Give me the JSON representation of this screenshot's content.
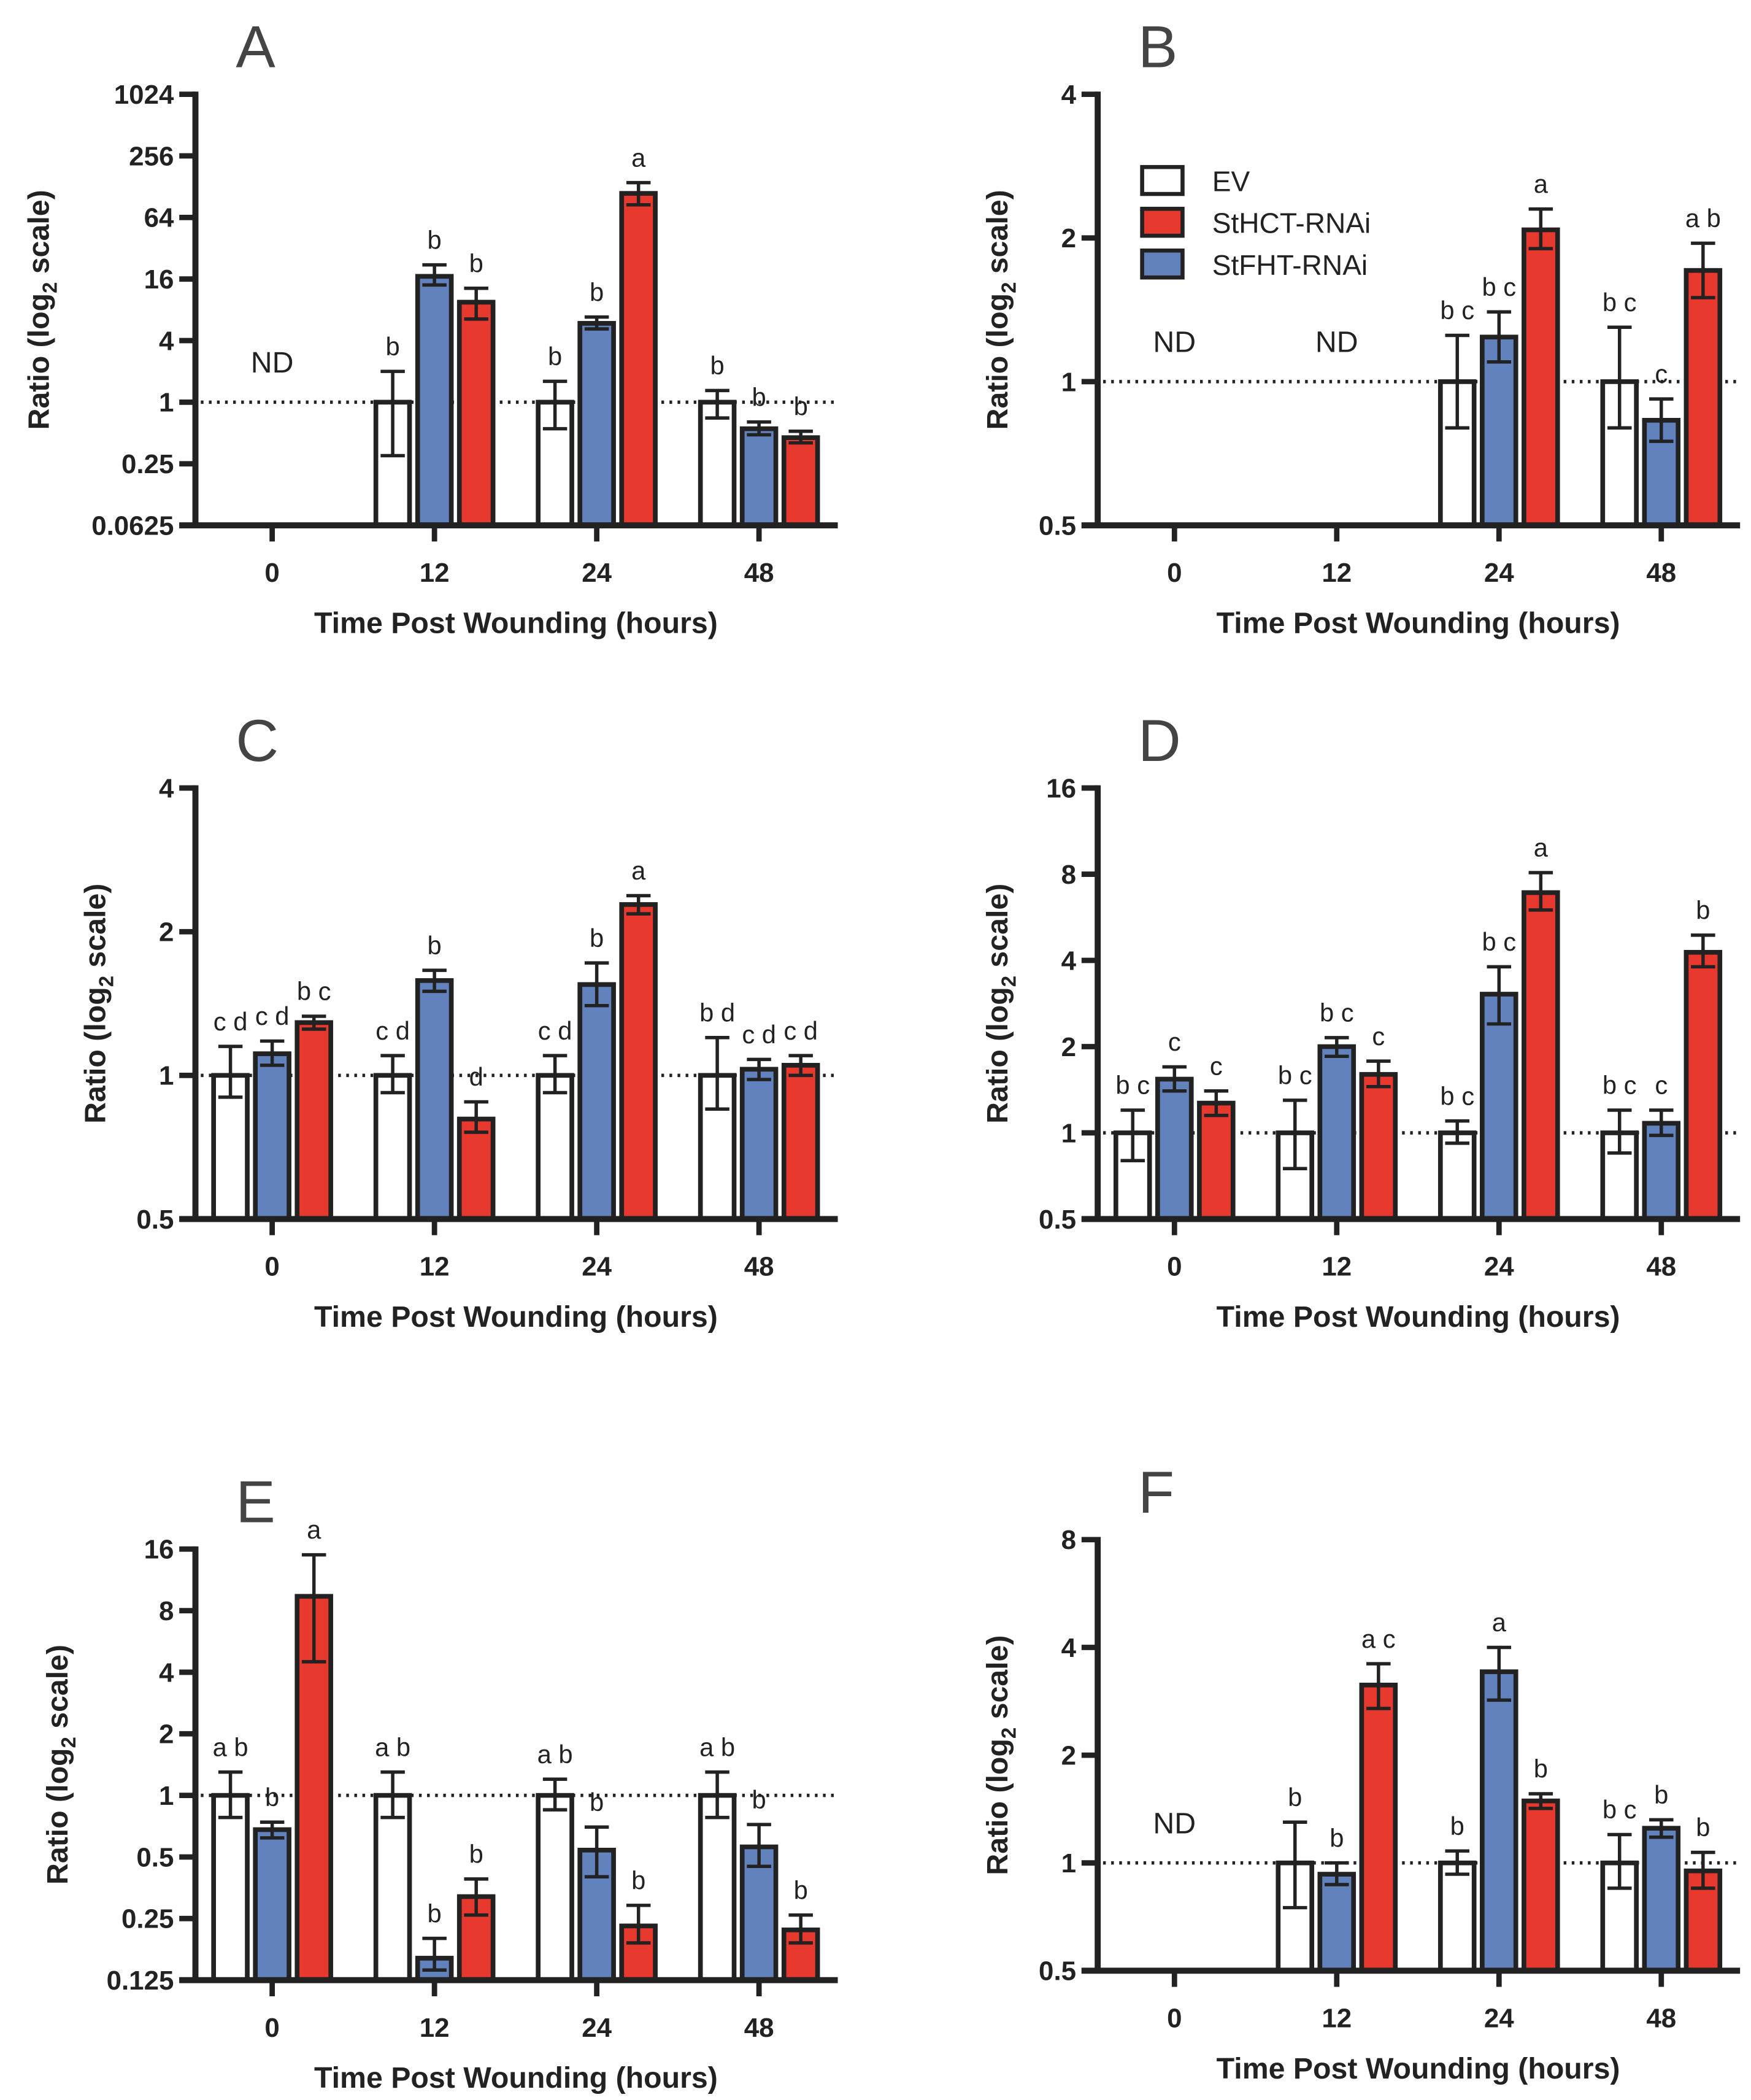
{
  "colors": {
    "EV": "#ffffff",
    "StHCT-RNAi": "#e8392f",
    "StFHT-RNAi": "#6282bd",
    "outline": "#222222"
  },
  "legend": {
    "items": [
      "EV",
      "StHCT-RNAi",
      "StFHT-RNAi"
    ]
  },
  "chart_data": [
    {
      "panel": "A",
      "type": "bar",
      "ylabel": "Ratio (log2 scale)",
      "xlabel": "Time Post Wounding (hours)",
      "yscale": "log2",
      "ylim": [
        0.0625,
        1024
      ],
      "yticks": [
        "1024",
        "256",
        "64",
        "16",
        "4",
        "1",
        "0.25",
        "0.0625"
      ],
      "categories": [
        "0",
        "12",
        "24",
        "48"
      ],
      "nd": [
        "0"
      ],
      "series": [
        {
          "name": "EV",
          "values": [
            null,
            1,
            1,
            1
          ],
          "err": [
            null,
            [
              0.3,
              2.0
            ],
            [
              0.55,
              1.6
            ],
            [
              0.7,
              1.3
            ]
          ],
          "letters": [
            null,
            "b",
            "b",
            "b"
          ]
        },
        {
          "name": "StFHT-RNAi",
          "values": [
            null,
            17,
            5.9,
            0.55
          ],
          "err": [
            null,
            [
              14,
              22
            ],
            [
              5.2,
              6.8
            ],
            [
              0.48,
              0.64
            ]
          ],
          "letters": [
            null,
            "b",
            "b",
            "b"
          ]
        },
        {
          "name": "StHCT-RNAi",
          "values": [
            null,
            9.5,
            110,
            0.45
          ],
          "err": [
            null,
            [
              6.5,
              13
            ],
            [
              85,
              140
            ],
            [
              0.4,
              0.52
            ]
          ],
          "letters": [
            null,
            "b",
            "a",
            "b"
          ]
        }
      ]
    },
    {
      "panel": "B",
      "type": "bar",
      "ylabel": "Ratio (log2 scale)",
      "xlabel": "Time Post Wounding (hours)",
      "yscale": "log2",
      "ylim": [
        0.5,
        4
      ],
      "yticks": [
        "4",
        "2",
        "1",
        "0.5"
      ],
      "categories": [
        "0",
        "12",
        "24",
        "48"
      ],
      "nd": [
        "0",
        "12"
      ],
      "legend": "top-left",
      "series": [
        {
          "name": "EV",
          "values": [
            null,
            null,
            1,
            1
          ],
          "err": [
            null,
            null,
            [
              0.8,
              1.25
            ],
            [
              0.8,
              1.3
            ]
          ],
          "letters": [
            null,
            null,
            "b c",
            "b c"
          ]
        },
        {
          "name": "StFHT-RNAi",
          "values": [
            null,
            null,
            1.24,
            0.83
          ],
          "err": [
            null,
            null,
            [
              1.1,
              1.4
            ],
            [
              0.75,
              0.92
            ]
          ],
          "letters": [
            null,
            null,
            "b c",
            "c"
          ]
        },
        {
          "name": "StHCT-RNAi",
          "values": [
            null,
            null,
            2.08,
            1.71
          ],
          "err": [
            null,
            null,
            [
              1.9,
              2.3
            ],
            [
              1.5,
              1.95
            ]
          ],
          "letters": [
            null,
            null,
            "a",
            "a b"
          ]
        }
      ]
    },
    {
      "panel": "C",
      "type": "bar",
      "ylabel": "Ratio (log2 scale)",
      "xlabel": "Time Post Wounding (hours)",
      "yscale": "log2",
      "ylim": [
        0.5,
        4
      ],
      "yticks": [
        "4",
        "2",
        "1",
        "0.5"
      ],
      "categories": [
        "0",
        "12",
        "24",
        "48"
      ],
      "nd": [],
      "series": [
        {
          "name": "EV",
          "values": [
            1,
            1,
            1,
            1
          ],
          "err": [
            [
              0.9,
              1.15
            ],
            [
              0.92,
              1.1
            ],
            [
              0.92,
              1.1
            ],
            [
              0.85,
              1.2
            ]
          ],
          "letters": [
            "c d",
            "c d",
            "c d",
            "b d"
          ]
        },
        {
          "name": "StFHT-RNAi",
          "values": [
            1.11,
            1.58,
            1.55,
            1.03
          ],
          "err": [
            [
              1.05,
              1.18
            ],
            [
              1.5,
              1.66
            ],
            [
              1.4,
              1.72
            ],
            [
              0.98,
              1.08
            ]
          ],
          "letters": [
            "c d",
            "b",
            "b",
            "c d"
          ]
        },
        {
          "name": "StHCT-RNAi",
          "values": [
            1.29,
            0.81,
            2.28,
            1.05
          ],
          "err": [
            [
              1.25,
              1.33
            ],
            [
              0.76,
              0.88
            ],
            [
              2.18,
              2.38
            ],
            [
              1.0,
              1.1
            ]
          ],
          "letters": [
            "b c",
            "d",
            "a",
            "c d"
          ]
        }
      ]
    },
    {
      "panel": "D",
      "type": "bar",
      "ylabel": "Ratio (log2 scale)",
      "xlabel": "Time Post Wounding (hours)",
      "yscale": "log2",
      "ylim": [
        0.5,
        16
      ],
      "yticks": [
        "16",
        "8",
        "4",
        "2",
        "1",
        "0.5"
      ],
      "categories": [
        "0",
        "12",
        "24",
        "48"
      ],
      "nd": [],
      "series": [
        {
          "name": "EV",
          "values": [
            1,
            1,
            1,
            1
          ],
          "err": [
            [
              0.8,
              1.2
            ],
            [
              0.75,
              1.3
            ],
            [
              0.92,
              1.1
            ],
            [
              0.85,
              1.2
            ]
          ],
          "letters": [
            "b c",
            "b c",
            "b c",
            "b c"
          ]
        },
        {
          "name": "StFHT-RNAi",
          "values": [
            1.54,
            2.0,
            3.05,
            1.08
          ],
          "err": [
            [
              1.4,
              1.7
            ],
            [
              1.85,
              2.15
            ],
            [
              2.4,
              3.8
            ],
            [
              0.98,
              1.2
            ]
          ],
          "letters": [
            "c",
            "b c",
            "b c",
            "c"
          ]
        },
        {
          "name": "StHCT-RNAi",
          "values": [
            1.27,
            1.6,
            6.9,
            4.27
          ],
          "err": [
            [
              1.15,
              1.4
            ],
            [
              1.45,
              1.78
            ],
            [
              6.0,
              8.1
            ],
            [
              3.8,
              4.9
            ]
          ],
          "letters": [
            "c",
            "c",
            "a",
            "b"
          ]
        }
      ]
    },
    {
      "panel": "E",
      "type": "bar",
      "ylabel": "Ratio (log2 scale)",
      "xlabel": "Time Post Wounding (hours)",
      "yscale": "log2",
      "ylim": [
        0.125,
        16
      ],
      "yticks": [
        "16",
        "8",
        "4",
        "2",
        "1",
        "0.5",
        "0.25",
        "0.125"
      ],
      "categories": [
        "0",
        "12",
        "24",
        "48"
      ],
      "nd": [],
      "series": [
        {
          "name": "EV",
          "values": [
            1,
            1,
            1,
            1
          ],
          "err": [
            [
              0.78,
              1.3
            ],
            [
              0.78,
              1.3
            ],
            [
              0.85,
              1.2
            ],
            [
              0.78,
              1.3
            ]
          ],
          "letters": [
            "a b",
            "a b",
            "a b",
            "a b"
          ]
        },
        {
          "name": "StFHT-RNAi",
          "values": [
            0.68,
            0.16,
            0.54,
            0.56
          ],
          "err": [
            [
              0.62,
              0.74
            ],
            [
              0.14,
              0.2
            ],
            [
              0.4,
              0.7
            ],
            [
              0.45,
              0.72
            ]
          ],
          "letters": [
            "b",
            "b",
            "b",
            "b"
          ]
        },
        {
          "name": "StHCT-RNAi",
          "values": [
            9.4,
            0.32,
            0.23,
            0.22
          ],
          "err": [
            [
              4.5,
              15
            ],
            [
              0.26,
              0.39
            ],
            [
              0.19,
              0.29
            ],
            [
              0.19,
              0.26
            ]
          ],
          "letters": [
            "a",
            "b",
            "b",
            "b"
          ]
        }
      ]
    },
    {
      "panel": "F",
      "type": "bar",
      "ylabel": "Ratio (log2 scale)",
      "xlabel": "Time Post Wounding (hours)",
      "yscale": "log2",
      "ylim": [
        0.5,
        8
      ],
      "yticks": [
        "8",
        "4",
        "2",
        "1",
        "0.5"
      ],
      "categories": [
        "0",
        "12",
        "24",
        "48"
      ],
      "nd": [
        "0"
      ],
      "series": [
        {
          "name": "EV",
          "values": [
            null,
            1,
            1,
            1
          ],
          "err": [
            null,
            [
              0.75,
              1.3
            ],
            [
              0.93,
              1.08
            ],
            [
              0.85,
              1.2
            ]
          ],
          "letters": [
            null,
            "b",
            "b",
            "b c"
          ]
        },
        {
          "name": "StFHT-RNAi",
          "values": [
            null,
            0.93,
            3.42,
            1.25
          ],
          "err": [
            null,
            [
              0.87,
              1.0
            ],
            [
              2.85,
              4.0
            ],
            [
              1.18,
              1.32
            ]
          ],
          "letters": [
            null,
            "b",
            "a",
            "b"
          ]
        },
        {
          "name": "StHCT-RNAi",
          "values": [
            null,
            3.14,
            1.49,
            0.95
          ],
          "err": [
            null,
            [
              2.7,
              3.6
            ],
            [
              1.42,
              1.56
            ],
            [
              0.85,
              1.07
            ]
          ],
          "letters": [
            null,
            "a c",
            "b",
            "b"
          ]
        }
      ]
    }
  ],
  "nd_label": "ND"
}
